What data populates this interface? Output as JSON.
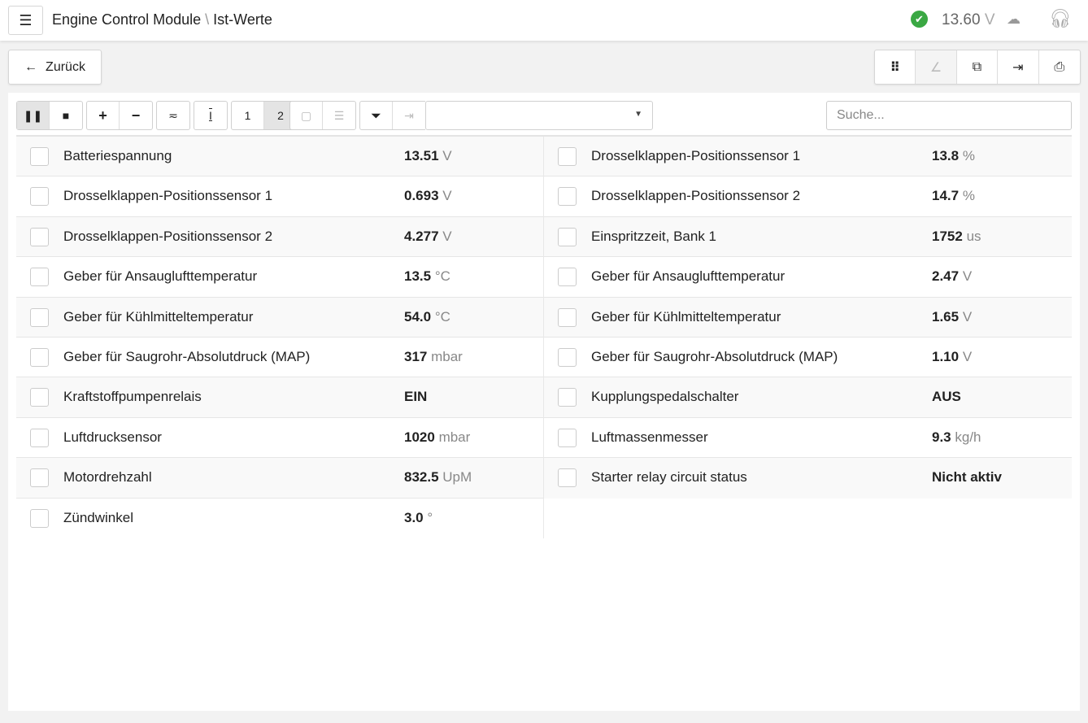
{
  "header": {
    "title_module": "Engine Control Module",
    "title_sep": "\\",
    "title_page": "Ist-Werte",
    "voltage_value": "13.60",
    "voltage_unit": "V",
    "status": "connected"
  },
  "toolbar": {
    "back_label": "Zurück",
    "search_placeholder": "Suche...",
    "select_value": "",
    "page_1": "1",
    "page_2": "2"
  },
  "left": [
    {
      "label": "Batteriespannung",
      "value": "13.51",
      "unit": "V"
    },
    {
      "label": "Drosselklappen-Positionssensor 1",
      "value": "0.693",
      "unit": "V"
    },
    {
      "label": "Drosselklappen-Positionssensor 2",
      "value": "4.277",
      "unit": "V"
    },
    {
      "label": "Geber für Ansauglufttemperatur",
      "value": "13.5",
      "unit": "°C"
    },
    {
      "label": "Geber für Kühlmitteltemperatur",
      "value": "54.0",
      "unit": "°C"
    },
    {
      "label": "Geber für Saugrohr-Absolutdruck (MAP)",
      "value": "317",
      "unit": "mbar"
    },
    {
      "label": "Kraftstoffpumpenrelais",
      "value": "EIN",
      "unit": ""
    },
    {
      "label": "Luftdrucksensor",
      "value": "1020",
      "unit": "mbar"
    },
    {
      "label": "Motordrehzahl",
      "value": "832.5",
      "unit": "UpM"
    },
    {
      "label": "Zündwinkel",
      "value": "3.0",
      "unit": "°"
    }
  ],
  "right": [
    {
      "label": "Drosselklappen-Positionssensor 1",
      "value": "13.8",
      "unit": "%"
    },
    {
      "label": "Drosselklappen-Positionssensor 2",
      "value": "14.7",
      "unit": "%"
    },
    {
      "label": "Einspritzzeit, Bank 1",
      "value": "1752",
      "unit": "us"
    },
    {
      "label": "Geber für Ansauglufttemperatur",
      "value": "2.47",
      "unit": "V"
    },
    {
      "label": "Geber für Kühlmitteltemperatur",
      "value": "1.65",
      "unit": "V"
    },
    {
      "label": "Geber für Saugrohr-Absolutdruck (MAP)",
      "value": "1.10",
      "unit": "V"
    },
    {
      "label": "Kupplungspedalschalter",
      "value": "AUS",
      "unit": ""
    },
    {
      "label": "Luftmassenmesser",
      "value": "9.3",
      "unit": "kg/h"
    },
    {
      "label": "Starter relay circuit status",
      "value": "Nicht aktiv",
      "unit": ""
    }
  ]
}
